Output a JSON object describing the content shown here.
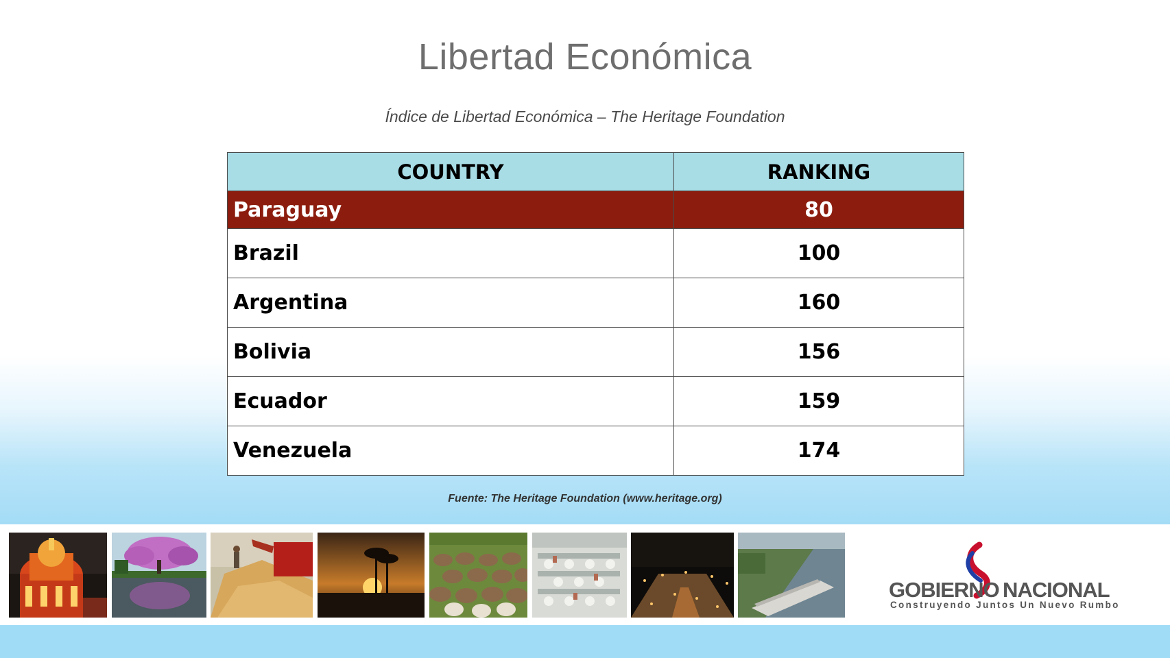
{
  "title": "Libertad Económica",
  "subtitle": "Índice de Libertad Económica  – The Heritage Foundation",
  "table": {
    "headers": [
      "COUNTRY",
      "RANKING"
    ],
    "rows": [
      {
        "country": "Paraguay",
        "ranking": "80"
      },
      {
        "country": "Brazil",
        "ranking": "100"
      },
      {
        "country": "Argentina",
        "ranking": "160"
      },
      {
        "country": "Bolivia",
        "ranking": "156"
      },
      {
        "country": "Ecuador",
        "ranking": "159"
      },
      {
        "country": "Venezuela",
        "ranking": "174"
      }
    ]
  },
  "source": "Fuente: The Heritage Foundation (www.heritage.org)",
  "logo": {
    "name_left": "GOBIERNO",
    "name_right": "NACIONAL",
    "tagline": "Construyendo Juntos Un Nuevo Rumbo"
  },
  "colors": {
    "header_bg": "#a8dde6",
    "highlight_row": "#8c1d0e",
    "title": "#6e6e6e",
    "band_blue": "#a0dcf6"
  },
  "photos": [
    "palace-photo",
    "lapacho-tree-photo",
    "soybean-harvest-photo",
    "palm-sunset-photo",
    "cattle-herd-photo",
    "meat-plant-photo",
    "city-night-photo",
    "river-barge-photo"
  ]
}
